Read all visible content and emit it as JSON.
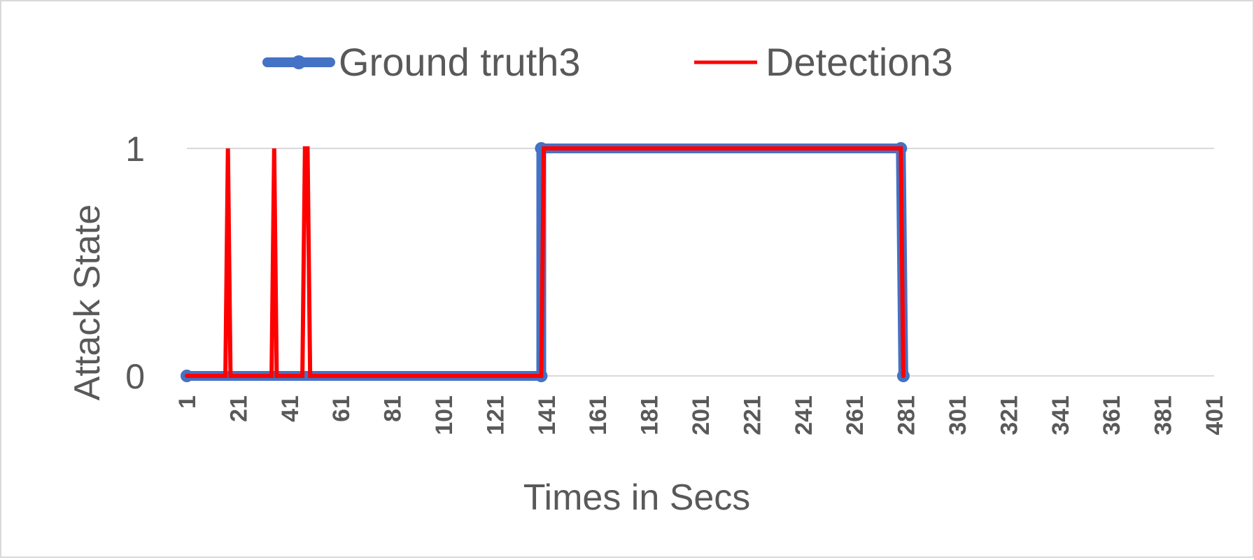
{
  "chart_data": {
    "type": "line",
    "xlabel": "Times in Secs",
    "ylabel": "Attack State",
    "xlim": [
      1,
      401
    ],
    "ylim": [
      0,
      1
    ],
    "x_ticks": [
      "1",
      "21",
      "41",
      "61",
      "81",
      "101",
      "121",
      "141",
      "161",
      "181",
      "201",
      "221",
      "241",
      "261",
      "281",
      "301",
      "321",
      "341",
      "361",
      "381",
      "401"
    ],
    "y_ticks": [
      "0",
      "1"
    ],
    "grid": "horizontal",
    "legend_position": "top",
    "series": [
      {
        "name": "Ground truth3",
        "color": "#4472c4",
        "marker": "circle",
        "points": [
          [
            1,
            0
          ],
          [
            139,
            0
          ],
          [
            139,
            1
          ],
          [
            279,
            1
          ],
          [
            280,
            0
          ]
        ]
      },
      {
        "name": "Detection3",
        "color": "#ff0000",
        "marker": "none",
        "points": [
          [
            1,
            0
          ],
          [
            16,
            0
          ],
          [
            17,
            1
          ],
          [
            18,
            0
          ],
          [
            34,
            0
          ],
          [
            35,
            1
          ],
          [
            36,
            0
          ],
          [
            46,
            0
          ],
          [
            47,
            1
          ],
          [
            48,
            1
          ],
          [
            49,
            0
          ],
          [
            139,
            0
          ],
          [
            140,
            1
          ],
          [
            279,
            1
          ],
          [
            280,
            0
          ]
        ]
      }
    ]
  }
}
